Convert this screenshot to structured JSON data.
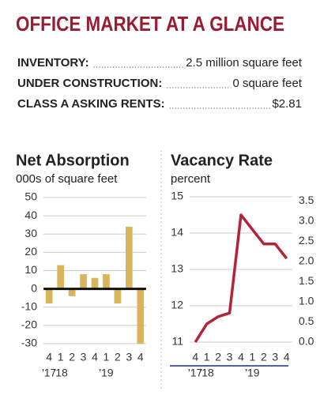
{
  "title": "OFFICE MARKET AT A GLANCE",
  "stats": [
    {
      "label": "INVENTORY:",
      "value": "2.5 million square feet"
    },
    {
      "label": "UNDER CONSTRUCTION:",
      "value": "0 square feet"
    },
    {
      "label": "CLASS A ASKING RENTS:",
      "value": "$2.81"
    }
  ],
  "chart_data": [
    {
      "type": "bar",
      "title": "Net Absorption",
      "subtitle": "000s of square feet",
      "categories": [
        "4",
        "1",
        "2",
        "3",
        "4",
        "1",
        "2",
        "3",
        "4"
      ],
      "year_labels": [
        "'17",
        "'18",
        null,
        null,
        null,
        "'19",
        null,
        null,
        null
      ],
      "values": [
        -8,
        13,
        -4,
        8,
        6,
        8,
        -8,
        34,
        -30
      ],
      "color": "#d8b45c",
      "ylim": [
        -30,
        50
      ],
      "yticks": [
        -30,
        -20,
        -10,
        0,
        10,
        20,
        30,
        40,
        50
      ],
      "grid": true
    },
    {
      "type": "line",
      "title": "Vacancy Rate",
      "subtitle": "percent",
      "categories": [
        "4",
        "1",
        "2",
        "3",
        "4",
        "1",
        "2",
        "3",
        "4"
      ],
      "year_labels": [
        "'17",
        "'18",
        null,
        null,
        null,
        "'19",
        null,
        null,
        null
      ],
      "series": [
        {
          "color": "#b3243b",
          "values": [
            11.0,
            11.5,
            11.7,
            11.8,
            14.5,
            14.1,
            13.7,
            13.7,
            13.3
          ]
        }
      ],
      "ylim": [
        11,
        15
      ],
      "yticks": [
        11,
        12,
        13,
        14,
        15
      ],
      "y2lim": [
        0,
        3.6
      ],
      "y2ticks": [
        {
          "value": 0,
          "label": "0.0"
        },
        0.5,
        {
          "value": 1,
          "label": "1.0"
        },
        1.5,
        {
          "value": 2,
          "label": "2.0"
        },
        2.5,
        {
          "value": 3,
          "label": "3.0"
        },
        3.5
      ],
      "grid": true
    }
  ]
}
